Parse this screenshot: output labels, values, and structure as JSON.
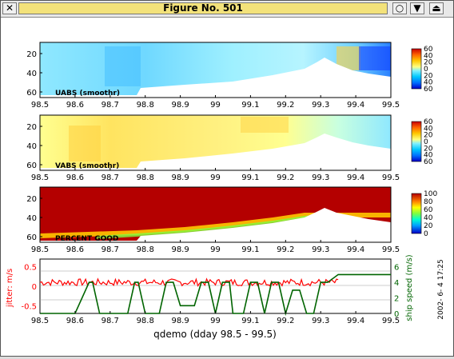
{
  "window": {
    "title": "Figure No. 501",
    "close_icon": "close-icon",
    "buttons": [
      "circle-icon",
      "chevron-down-icon",
      "eject-icon"
    ]
  },
  "colors": {
    "uv_scale": [
      "#0000c8",
      "#0070ff",
      "#00c8ff",
      "#7ff0ff",
      "#ffff80",
      "#ffc800",
      "#ff6400",
      "#c80000"
    ],
    "pg_scale": [
      "#0000c8",
      "#00a0ff",
      "#00ffd0",
      "#80ff40",
      "#ffff00",
      "#ff8000",
      "#b40000"
    ],
    "jitter": "#ff0000",
    "ship_speed": "#006400"
  },
  "panels": [
    {
      "id": "uabs",
      "label": "UABS  (smoothr)",
      "yticks": [
        "20",
        "40",
        "60"
      ],
      "cbar_ticks": [
        "60",
        "40",
        "20",
        "0",
        "20",
        "40",
        "60"
      ]
    },
    {
      "id": "vabs",
      "label": "VABS  (smoothr)",
      "yticks": [
        "20",
        "40",
        "60"
      ],
      "cbar_ticks": [
        "60",
        "40",
        "20",
        "0",
        "20",
        "40",
        "60"
      ]
    },
    {
      "id": "pg",
      "label": "PERCENT GOOD",
      "yticks": [
        "20",
        "40",
        "60"
      ],
      "cbar_ticks": [
        "100",
        "80",
        "60",
        "40",
        "20",
        "0"
      ]
    }
  ],
  "xticks": [
    "98.5",
    "98.6",
    "98.7",
    "98.8",
    "98.9",
    "99",
    "99.1",
    "99.2",
    "99.3",
    "99.4",
    "99.5"
  ],
  "bottom": {
    "yticks_left": [
      "0.5",
      "0",
      "-0.5"
    ],
    "yticks_right": [
      "6",
      "4",
      "2",
      "0"
    ],
    "ylabel_left": "jitter: m/s",
    "ylabel_right": "ship speed (m/s)",
    "xlabel": "qdemo (dday 98.5 - 99.5)",
    "timestamp": "2002- 6- 4  17:25"
  },
  "chart_data": {
    "type": "line",
    "x": [
      98.5,
      98.55,
      98.6,
      98.64,
      98.65,
      98.67,
      98.7,
      98.75,
      98.77,
      98.78,
      98.8,
      98.84,
      98.86,
      98.88,
      98.9,
      98.94,
      98.96,
      98.98,
      99.0,
      99.02,
      99.04,
      99.05,
      99.08,
      99.1,
      99.12,
      99.14,
      99.16,
      99.18,
      99.2,
      99.22,
      99.24,
      99.26,
      99.28,
      99.3,
      99.32,
      99.35,
      99.4,
      99.45,
      99.5
    ],
    "series": [
      {
        "name": "ship speed (m/s)",
        "values": [
          0,
          0,
          0,
          4,
          4,
          0,
          0,
          0,
          4,
          4,
          0,
          0,
          4,
          4,
          1,
          1,
          4,
          4,
          0,
          4,
          4,
          0,
          0,
          4,
          4,
          0,
          4,
          4,
          0,
          3,
          3,
          0,
          0,
          4,
          4,
          5,
          5,
          5,
          5
        ]
      }
    ],
    "jitter_mean": 0.1,
    "xlim": [
      98.5,
      99.5
    ],
    "ylim_left": [
      -0.7,
      0.7
    ],
    "ylim_right": [
      0,
      7
    ]
  }
}
